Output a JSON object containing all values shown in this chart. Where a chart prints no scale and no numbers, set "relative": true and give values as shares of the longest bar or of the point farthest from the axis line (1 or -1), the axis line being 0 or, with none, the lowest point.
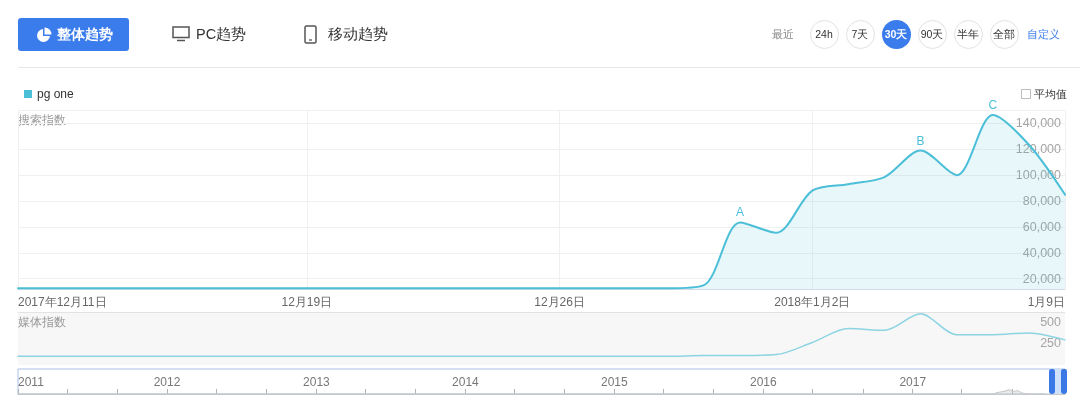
{
  "chart_data": [
    {
      "type": "area",
      "ylabel": "搜索指数",
      "x": [
        "2017-12-11",
        "2017-12-12",
        "2017-12-13",
        "2017-12-14",
        "2017-12-15",
        "2017-12-16",
        "2017-12-17",
        "2017-12-18",
        "2017-12-19",
        "2017-12-20",
        "2017-12-21",
        "2017-12-22",
        "2017-12-23",
        "2017-12-24",
        "2017-12-25",
        "2017-12-26",
        "2017-12-27",
        "2017-12-28",
        "2017-12-29",
        "2017-12-30",
        "2017-12-31",
        "2018-01-01",
        "2018-01-02",
        "2018-01-03",
        "2018-01-04",
        "2018-01-05",
        "2018-01-06",
        "2018-01-07",
        "2018-01-08",
        "2018-01-09"
      ],
      "series": [
        {
          "name": "pg one",
          "color": "#4cbfd8",
          "values": [
            12500,
            12500,
            12500,
            12500,
            12500,
            12500,
            12500,
            12500,
            12500,
            12500,
            12500,
            12500,
            12500,
            12500,
            12500,
            12500,
            12500,
            12500,
            12500,
            15000,
            63500,
            55500,
            88000,
            93000,
            98500,
            119000,
            100000,
            146500,
            123500,
            85000
          ]
        }
      ],
      "xlim": [
        "2017-12-11",
        "2018-01-09"
      ],
      "xticks": [
        {
          "value": "2017-12-11",
          "label": "2017年12月11日"
        },
        {
          "value": "2017-12-19",
          "label": "12月19日"
        },
        {
          "value": "2017-12-26",
          "label": "12月26日"
        },
        {
          "value": "2018-01-02",
          "label": "2018年1月2日"
        },
        {
          "value": "2018-01-09",
          "label": "1月9日"
        }
      ],
      "ylim": [
        12000,
        150000
      ],
      "yticks": [
        {
          "value": 20000,
          "label": "20,000"
        },
        {
          "value": 40000,
          "label": "40,000"
        },
        {
          "value": 60000,
          "label": "60,000"
        },
        {
          "value": 80000,
          "label": "80,000"
        },
        {
          "value": 100000,
          "label": "100,000"
        },
        {
          "value": 120000,
          "label": "120,000"
        },
        {
          "value": 140000,
          "label": "140,000"
        },
        {
          "value": 150000,
          "label": null
        }
      ],
      "grid": true,
      "legend": "top left",
      "annotations": [
        "整体趋势",
        "PC趋势",
        "移动趋势",
        "最近",
        "24h",
        "7天",
        "30天",
        "90天",
        "半年",
        "全部",
        "自定义",
        "平均值",
        {
          "text": "A",
          "x": "2017-12-31",
          "y": 63500
        },
        {
          "text": "B",
          "x": "2018-01-05",
          "y": 119000
        },
        {
          "text": "C",
          "x": "2018-01-07",
          "y": 146500
        }
      ]
    },
    {
      "type": "line",
      "ylabel": "媒体指数",
      "x": [
        "2017-12-11",
        "2017-12-12",
        "2017-12-13",
        "2017-12-14",
        "2017-12-15",
        "2017-12-16",
        "2017-12-17",
        "2017-12-18",
        "2017-12-19",
        "2017-12-20",
        "2017-12-21",
        "2017-12-22",
        "2017-12-23",
        "2017-12-24",
        "2017-12-25",
        "2017-12-26",
        "2017-12-27",
        "2017-12-28",
        "2017-12-29",
        "2017-12-30",
        "2017-12-31",
        "2018-01-01",
        "2018-01-02",
        "2018-01-03",
        "2018-01-04",
        "2018-01-05",
        "2018-01-06",
        "2018-01-07",
        "2018-01-08",
        "2018-01-09"
      ],
      "values": [
        100,
        100,
        100,
        100,
        100,
        100,
        100,
        100,
        100,
        100,
        100,
        100,
        100,
        100,
        100,
        100,
        100,
        100,
        100,
        110,
        110,
        120,
        260,
        420,
        400,
        590,
        350,
        350,
        370,
        290
      ],
      "color": "#8dd4e2",
      "xlim": [
        "2017-12-11",
        "2018-01-09"
      ],
      "ylim": [
        0,
        600
      ],
      "yticks": [
        250,
        500
      ],
      "tick_labels": "y"
    },
    {
      "type": "area",
      "relative": true,
      "x": [
        "2011-01-01",
        "2017-07-15",
        "2017-07-25",
        "2017-08-05",
        "2017-08-15",
        "2017-08-25",
        "2017-09-05",
        "2017-09-15",
        "2017-09-25",
        "2017-10-10",
        "2017-11-20"
      ],
      "values": [
        0,
        0,
        0.3,
        0.5,
        0.7,
        1,
        0.6,
        0.8,
        0.3,
        0,
        0
      ],
      "color": "#c4c4c4",
      "xlim": [
        "2011-01-01",
        "2018-01-09"
      ],
      "xticks": [
        "2011",
        {
          "value": "2011-05",
          "label": null
        },
        {
          "value": "2011-09",
          "label": null
        },
        "2012",
        {
          "value": "2012-05",
          "label": null
        },
        {
          "value": "2012-09",
          "label": null
        },
        "2013",
        {
          "value": "2013-05",
          "label": null
        },
        {
          "value": "2013-09",
          "label": null
        },
        "2014",
        {
          "value": "2014-05",
          "label": null
        },
        {
          "value": "2014-09",
          "label": null
        },
        "2015",
        {
          "value": "2015-05",
          "label": null
        },
        {
          "value": "2015-09",
          "label": null
        },
        "2016",
        {
          "value": "2016-05",
          "label": null
        },
        {
          "value": "2016-09",
          "label": null
        },
        "2017",
        {
          "value": "2017-05",
          "label": null
        },
        {
          "value": "2017-09",
          "label": null
        }
      ]
    }
  ]
}
